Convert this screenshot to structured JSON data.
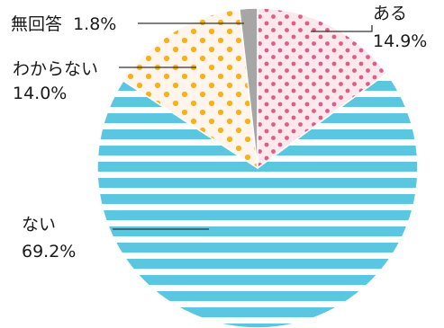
{
  "chart_data": {
    "type": "pie",
    "title": "",
    "slices": [
      {
        "label": "ある",
        "value": 14.9,
        "value_text": "14.9%",
        "color": "#e05a8a",
        "pattern": "dots-on-pink"
      },
      {
        "label": "ない",
        "value": 69.2,
        "value_text": "69.2%",
        "color": "#5bc6e0",
        "pattern": "horizontal-stripes"
      },
      {
        "label": "わからない",
        "value": 14.0,
        "value_text": "14.0%",
        "color": "#f5b31a",
        "pattern": "dots-on-cream"
      },
      {
        "label": "無回答",
        "value": 1.8,
        "value_text": "1.8%",
        "color": "#a6a6a6",
        "pattern": "solid"
      }
    ],
    "start": "top",
    "direction": "clockwise",
    "legend": "none"
  }
}
